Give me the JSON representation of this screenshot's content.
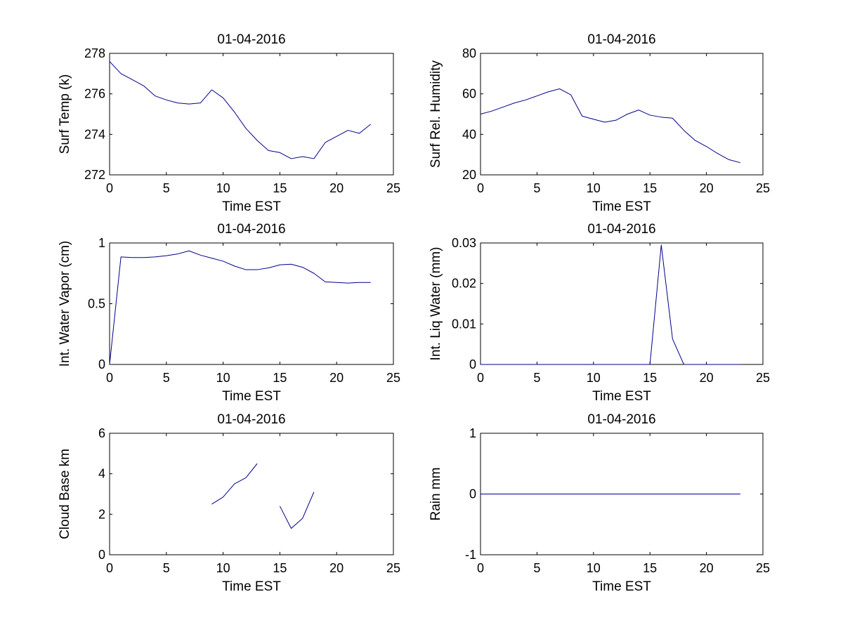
{
  "line_color": "#00008b",
  "chart_data": [
    {
      "type": "line",
      "title": "01-04-2016",
      "xlabel": "Time EST",
      "ylabel": "Surf Temp (k)",
      "xlim": [
        0,
        25
      ],
      "ylim": [
        272,
        278
      ],
      "xticks": [
        0,
        5,
        10,
        15,
        20,
        25
      ],
      "yticks": [
        272,
        274,
        276,
        278
      ],
      "grid": false,
      "series": [
        {
          "name": "Surf Temp",
          "x": [
            0,
            1,
            2,
            3,
            4,
            5,
            6,
            7,
            8,
            9,
            10,
            11,
            12,
            13,
            14,
            15,
            16,
            17,
            18,
            19,
            20,
            21,
            22,
            23
          ],
          "y": [
            277.6,
            277.0,
            276.7,
            276.4,
            275.9,
            275.7,
            275.55,
            275.5,
            275.55,
            276.2,
            275.8,
            275.1,
            274.3,
            273.7,
            273.2,
            273.1,
            272.8,
            272.9,
            272.8,
            273.6,
            273.9,
            274.2,
            274.05,
            274.5
          ]
        }
      ]
    },
    {
      "type": "line",
      "title": "01-04-2016",
      "xlabel": "Time EST",
      "ylabel": "Surf Rel. Humidity",
      "xlim": [
        0,
        25
      ],
      "ylim": [
        20,
        80
      ],
      "xticks": [
        0,
        5,
        10,
        15,
        20,
        25
      ],
      "yticks": [
        20,
        40,
        60,
        80
      ],
      "grid": false,
      "series": [
        {
          "name": "Surf Rel. Humidity",
          "x": [
            0,
            1,
            2,
            3,
            4,
            5,
            6,
            7,
            8,
            9,
            10,
            11,
            12,
            13,
            14,
            15,
            16,
            17,
            18,
            19,
            20,
            21,
            22,
            23
          ],
          "y": [
            50,
            51.5,
            53.5,
            55.5,
            57,
            59,
            61,
            62.5,
            59.5,
            49,
            47.5,
            46,
            47,
            50,
            52,
            49.5,
            48.5,
            48,
            42,
            37,
            34,
            30.5,
            27.5,
            26
          ]
        }
      ]
    },
    {
      "type": "line",
      "title": "01-04-2016",
      "xlabel": "Time EST",
      "ylabel": "Int. Water Vapor (cm)",
      "xlim": [
        0,
        25
      ],
      "ylim": [
        0,
        1
      ],
      "xticks": [
        0,
        5,
        10,
        15,
        20,
        25
      ],
      "yticks": [
        0,
        0.5,
        1
      ],
      "grid": false,
      "series": [
        {
          "name": "Int. Water Vapor",
          "x": [
            0,
            1,
            2,
            3,
            4,
            5,
            6,
            7,
            8,
            9,
            10,
            11,
            12,
            13,
            14,
            15,
            16,
            17,
            18,
            19,
            20,
            21,
            22,
            23
          ],
          "y": [
            0.0,
            0.885,
            0.88,
            0.88,
            0.885,
            0.895,
            0.91,
            0.935,
            0.9,
            0.875,
            0.85,
            0.81,
            0.78,
            0.78,
            0.795,
            0.82,
            0.825,
            0.8,
            0.75,
            0.68,
            0.675,
            0.67,
            0.675,
            0.675
          ]
        }
      ]
    },
    {
      "type": "line",
      "title": "01-04-2016",
      "xlabel": "Time EST",
      "ylabel": "Int. Liq Water (mm)",
      "xlim": [
        0,
        25
      ],
      "ylim": [
        0,
        0.03
      ],
      "xticks": [
        0,
        5,
        10,
        15,
        20,
        25
      ],
      "yticks": [
        0,
        0.01,
        0.02,
        0.03
      ],
      "grid": false,
      "series": [
        {
          "name": "Int. Liq Water",
          "x": [
            0,
            1,
            2,
            3,
            4,
            5,
            6,
            7,
            8,
            9,
            10,
            11,
            12,
            13,
            14,
            15,
            16,
            17,
            18,
            19,
            20,
            21,
            22,
            23
          ],
          "y": [
            0,
            0,
            0,
            0,
            0,
            0,
            0,
            0,
            0,
            0,
            0,
            0,
            0,
            0,
            0,
            0,
            0.0295,
            0.0063,
            0,
            0,
            0,
            0,
            0,
            0
          ]
        }
      ]
    },
    {
      "type": "line",
      "title": "01-04-2016",
      "xlabel": "Time EST",
      "ylabel": "Cloud Base km",
      "xlim": [
        0,
        25
      ],
      "ylim": [
        0,
        6
      ],
      "xticks": [
        0,
        5,
        10,
        15,
        20,
        25
      ],
      "yticks": [
        0,
        2,
        4,
        6
      ],
      "grid": false,
      "series": [
        {
          "name": "Cloud Base",
          "x": [
            0,
            1,
            2,
            3,
            4,
            5,
            6,
            7,
            8,
            9,
            10,
            11,
            12,
            13,
            14,
            15,
            16,
            17,
            18,
            19,
            20,
            21,
            22,
            23
          ],
          "y": [
            null,
            null,
            null,
            null,
            null,
            null,
            null,
            null,
            null,
            2.5,
            2.85,
            3.5,
            3.8,
            4.5,
            null,
            2.4,
            1.3,
            1.8,
            3.1,
            null,
            null,
            null,
            null,
            null
          ]
        }
      ]
    },
    {
      "type": "line",
      "title": "01-04-2016",
      "xlabel": "Time EST",
      "ylabel": "Rain mm",
      "xlim": [
        0,
        25
      ],
      "ylim": [
        -1,
        1
      ],
      "xticks": [
        0,
        5,
        10,
        15,
        20,
        25
      ],
      "yticks": [
        -1,
        0,
        1
      ],
      "grid": false,
      "series": [
        {
          "name": "Rain",
          "x": [
            0,
            1,
            2,
            3,
            4,
            5,
            6,
            7,
            8,
            9,
            10,
            11,
            12,
            13,
            14,
            15,
            16,
            17,
            18,
            19,
            20,
            21,
            22,
            23
          ],
          "y": [
            0,
            0,
            0,
            0,
            0,
            0,
            0,
            0,
            0,
            0,
            0,
            0,
            0,
            0,
            0,
            0,
            0,
            0,
            0,
            0,
            0,
            0,
            0,
            0
          ]
        }
      ]
    }
  ]
}
